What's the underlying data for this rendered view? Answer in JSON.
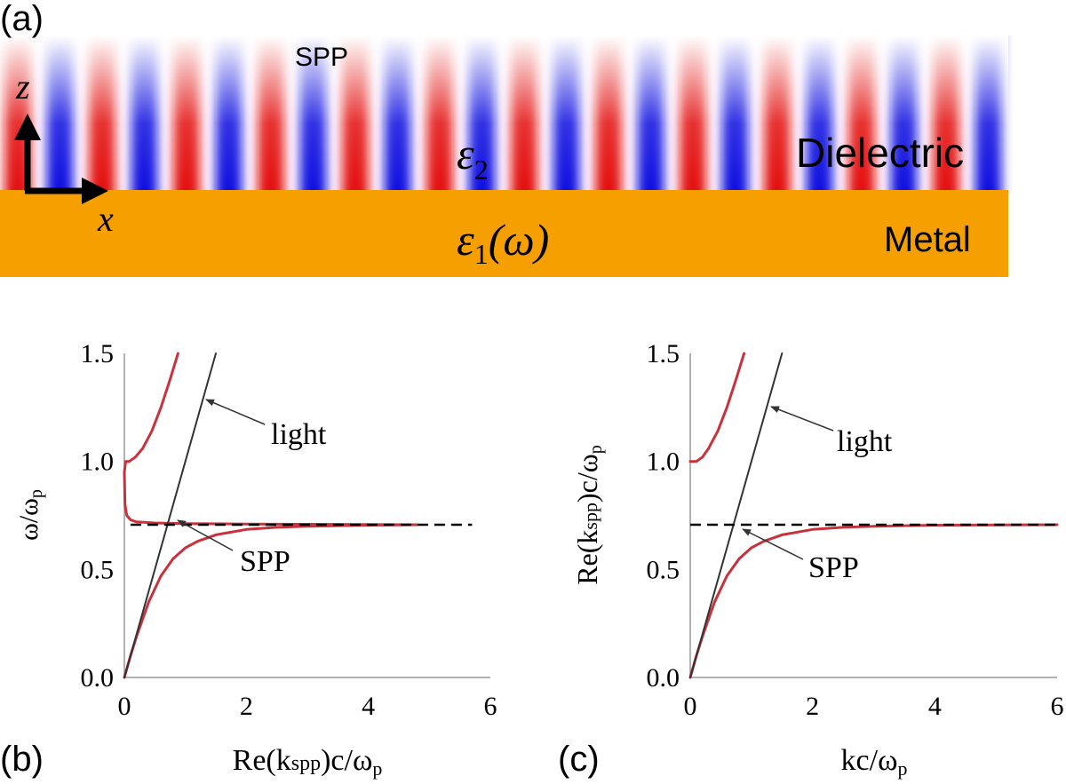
{
  "panel_a": {
    "label": "(a)",
    "wave_label": "SPP",
    "axis_z": "z",
    "axis_x": "x",
    "eps2": "ε",
    "eps2_sub": "2",
    "eps1": "ε",
    "eps1_sub": "1",
    "eps1_arg": "(ω)",
    "dielectric": "Dielectric",
    "metal": "Metal",
    "colors": {
      "metal": "#f5a000",
      "field_pos": "#e31010",
      "field_neg": "#1010e0"
    }
  },
  "panel_b": {
    "label": "(b)",
    "xlabel_main": "Re(k",
    "xlabel_sub": "spp",
    "xlabel_tail": ")c/ω",
    "xlabel_p": "p",
    "ylabel_main": "ω/ω",
    "ylabel_p": "p",
    "annot_light": "light",
    "annot_spp": "SPP"
  },
  "panel_c": {
    "label": "(c)",
    "xlabel_main": "kc/ω",
    "xlabel_p": "p",
    "ylabel_main": "Re(k",
    "ylabel_sub": "spp",
    "ylabel_tail": ")c/ω",
    "ylabel_p": "p",
    "annot_light": "light",
    "annot_spp": "SPP"
  },
  "chart_data": [
    {
      "type": "line",
      "title": "",
      "xlabel": "Re(kspp)c/ωp",
      "ylabel": "ω/ωp",
      "xlim": [
        0,
        6
      ],
      "ylim": [
        0,
        1.5
      ],
      "xticks": [
        "0",
        "2",
        "4",
        "6"
      ],
      "yticks": [
        "0.0",
        "0.5",
        "1.0",
        "1.5"
      ],
      "series": [
        {
          "name": "SPP lower branch",
          "color": "#c8323c",
          "x": [
            0,
            0.1,
            0.2,
            0.3,
            0.4,
            0.5,
            0.6,
            0.8,
            1.0,
            1.2,
            1.5,
            2.0,
            2.5,
            3.0,
            4.0,
            4.8
          ],
          "y": [
            0,
            0.1,
            0.19,
            0.27,
            0.35,
            0.41,
            0.47,
            0.55,
            0.6,
            0.63,
            0.66,
            0.685,
            0.695,
            0.7,
            0.705,
            0.707
          ]
        },
        {
          "name": "SPP upper branch",
          "color": "#c8323c",
          "x": [
            0.88,
            0.75,
            0.6,
            0.45,
            0.3,
            0.18,
            0.08,
            0.02,
            0.0,
            0.01,
            0.04,
            0.1,
            0.2,
            0.5,
            1.0,
            2.0,
            4.8
          ],
          "y": [
            1.5,
            1.38,
            1.25,
            1.14,
            1.06,
            1.02,
            1.0,
            1.0,
            0.95,
            0.8,
            0.75,
            0.73,
            0.72,
            0.715,
            0.712,
            0.71,
            0.707
          ]
        },
        {
          "name": "light",
          "color": "#333333",
          "x": [
            0,
            1.5
          ],
          "y": [
            0,
            1.5
          ]
        },
        {
          "name": "ωsp asymptote (dashed)",
          "color": "#000000",
          "x": [
            0.1,
            5.7
          ],
          "y": [
            0.707,
            0.707
          ]
        }
      ]
    },
    {
      "type": "line",
      "title": "",
      "xlabel": "kc/ωp",
      "ylabel": "Re(kspp)c/ωp",
      "xlim": [
        0,
        6
      ],
      "ylim": [
        0,
        1.5
      ],
      "xticks": [
        "0",
        "2",
        "4",
        "6"
      ],
      "yticks": [
        "0.0",
        "0.5",
        "1.0",
        "1.5"
      ],
      "series": [
        {
          "name": "SPP lower branch",
          "color": "#c8323c",
          "x": [
            0,
            0.1,
            0.2,
            0.3,
            0.4,
            0.5,
            0.6,
            0.8,
            1.0,
            1.2,
            1.5,
            2.0,
            2.5,
            3.0,
            4.0,
            5.0,
            6.0
          ],
          "y": [
            0,
            0.1,
            0.19,
            0.27,
            0.35,
            0.41,
            0.47,
            0.55,
            0.6,
            0.63,
            0.66,
            0.685,
            0.695,
            0.7,
            0.705,
            0.706,
            0.707
          ]
        },
        {
          "name": "upper branch",
          "color": "#c8323c",
          "x": [
            0,
            0.1,
            0.2,
            0.3,
            0.45,
            0.6,
            0.75,
            0.88
          ],
          "y": [
            1.0,
            1.0,
            1.02,
            1.06,
            1.14,
            1.25,
            1.38,
            1.5
          ]
        },
        {
          "name": "light",
          "color": "#333333",
          "x": [
            0,
            1.5
          ],
          "y": [
            0,
            1.5
          ]
        },
        {
          "name": "ωsp asymptote (dashed)",
          "color": "#000000",
          "x": [
            0,
            6
          ],
          "y": [
            0.707,
            0.707
          ]
        }
      ]
    }
  ]
}
